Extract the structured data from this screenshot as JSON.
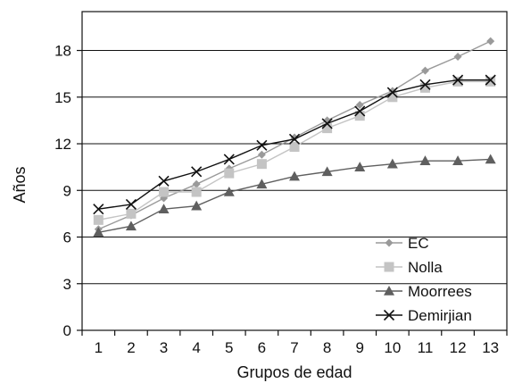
{
  "chart_data": {
    "type": "line",
    "title": "",
    "xlabel": "Grupos de edad",
    "ylabel": "Años",
    "x": [
      1,
      2,
      3,
      4,
      5,
      6,
      7,
      8,
      9,
      10,
      11,
      12,
      13
    ],
    "ylim": [
      0,
      20.5
    ],
    "yticks": [
      0,
      3,
      6,
      9,
      12,
      15,
      18
    ],
    "grid": "horizontal",
    "legend": "bottom-right",
    "series": [
      {
        "name": "EC",
        "marker": "diamond",
        "color": "#9a9a9a",
        "values": [
          6.5,
          7.4,
          8.5,
          9.4,
          10.4,
          11.3,
          12.4,
          13.5,
          14.5,
          15.4,
          16.7,
          17.6,
          18.6
        ]
      },
      {
        "name": "Nolla",
        "marker": "square",
        "color": "#c4c4c4",
        "values": [
          7.1,
          7.5,
          8.9,
          8.9,
          10.1,
          10.7,
          11.8,
          13.0,
          13.8,
          15.0,
          15.6,
          16.0,
          16.0
        ]
      },
      {
        "name": "Moorrees",
        "marker": "triangle",
        "color": "#5f5f5f",
        "values": [
          6.3,
          6.7,
          7.8,
          8.0,
          8.9,
          9.4,
          9.9,
          10.2,
          10.5,
          10.7,
          10.9,
          10.9,
          11.0
        ]
      },
      {
        "name": "Demirjian",
        "marker": "x",
        "color": "#111111",
        "values": [
          7.8,
          8.1,
          9.6,
          10.2,
          11.0,
          11.9,
          12.3,
          13.3,
          14.1,
          15.3,
          15.8,
          16.1,
          16.1
        ]
      }
    ]
  }
}
